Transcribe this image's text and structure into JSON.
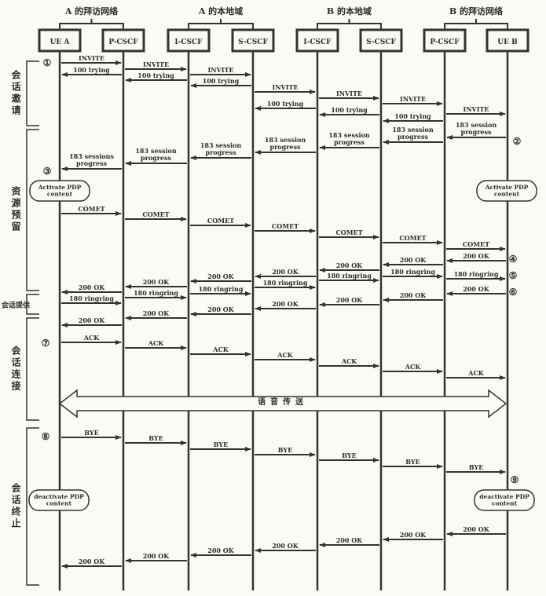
{
  "groups": [
    {
      "label": "A 的拜访网络",
      "from": 0,
      "to": 1
    },
    {
      "label": "A 的本地域",
      "from": 2,
      "to": 3
    },
    {
      "label": "B 的本地域",
      "from": 4,
      "to": 5
    },
    {
      "label": "B 的拜访网络",
      "from": 6,
      "to": 7
    }
  ],
  "entities": [
    "UE A",
    "P-CSCF",
    "I-CSCF",
    "S-CSCF",
    "I-CSCF",
    "S-CSCF",
    "P-CSCF",
    "UE B"
  ],
  "phases": [
    "会话邀请",
    "资源预留",
    "会话提供",
    "会话连接",
    "会话终止"
  ],
  "steps": [
    "①",
    "②",
    "③",
    "④",
    "⑤",
    "⑥",
    "⑦",
    "⑧",
    "⑨"
  ],
  "notes": {
    "activate_a": "Activate PDP\ncontent",
    "activate_b": "Activate PDP\ncontent",
    "deactivate_a": "deactivate PDP\ncontent",
    "deactivate_b": "deactivate PDP\ncontent"
  },
  "media": "语音传送",
  "messages": [
    {
      "from": 0,
      "to": 1,
      "label": "INVITE"
    },
    {
      "from": 1,
      "to": 0,
      "label": "100 trying"
    },
    {
      "from": 1,
      "to": 2,
      "label": "INVITE"
    },
    {
      "from": 2,
      "to": 1,
      "label": "100 trying"
    },
    {
      "from": 2,
      "to": 3,
      "label": "INVITE"
    },
    {
      "from": 3,
      "to": 2,
      "label": "100 trying"
    },
    {
      "from": 3,
      "to": 4,
      "label": "INVITE"
    },
    {
      "from": 4,
      "to": 3,
      "label": "100 trying"
    },
    {
      "from": 4,
      "to": 5,
      "label": "INVITE"
    },
    {
      "from": 5,
      "to": 4,
      "label": "100 trying"
    },
    {
      "from": 5,
      "to": 6,
      "label": "INVITE"
    },
    {
      "from": 6,
      "to": 5,
      "label": "100 trying"
    },
    {
      "from": 6,
      "to": 7,
      "label": "INVITE"
    },
    {
      "from": 7,
      "to": 6,
      "label": "183 session\nprogress"
    },
    {
      "from": 6,
      "to": 5,
      "label": "183 session\nprogress"
    },
    {
      "from": 5,
      "to": 4,
      "label": "183 session\nprogress"
    },
    {
      "from": 4,
      "to": 3,
      "label": "183 session\nprogress"
    },
    {
      "from": 3,
      "to": 2,
      "label": "183 session\nprogress"
    },
    {
      "from": 2,
      "to": 1,
      "label": "183 session\nprogress"
    },
    {
      "from": 1,
      "to": 0,
      "label": "183 sessions\nprogress"
    },
    {
      "from": 0,
      "to": 1,
      "label": "COMET"
    },
    {
      "from": 1,
      "to": 2,
      "label": "COMET"
    },
    {
      "from": 2,
      "to": 3,
      "label": "COMET"
    },
    {
      "from": 3,
      "to": 4,
      "label": "COMET"
    },
    {
      "from": 4,
      "to": 5,
      "label": "COMET"
    },
    {
      "from": 5,
      "to": 6,
      "label": "COMET"
    },
    {
      "from": 6,
      "to": 7,
      "label": "COMET"
    },
    {
      "from": 7,
      "to": 6,
      "label": "200 OK"
    },
    {
      "from": 6,
      "to": 5,
      "label": "200 OK"
    },
    {
      "from": 5,
      "to": 4,
      "label": "200 OK"
    },
    {
      "from": 4,
      "to": 3,
      "label": "200 OK"
    },
    {
      "from": 3,
      "to": 2,
      "label": "200 OK"
    },
    {
      "from": 2,
      "to": 1,
      "label": "200 OK"
    },
    {
      "from": 1,
      "to": 0,
      "label": "200 OK"
    },
    {
      "from": 6,
      "to": 7,
      "label": "180 ringring"
    },
    {
      "from": 5,
      "to": 6,
      "label": "180 ringring"
    },
    {
      "from": 4,
      "to": 5,
      "label": "180 ringring"
    },
    {
      "from": 3,
      "to": 4,
      "label": "180 ringring"
    },
    {
      "from": 2,
      "to": 3,
      "label": "180 ringring"
    },
    {
      "from": 1,
      "to": 2,
      "label": "180 ringring"
    },
    {
      "from": 0,
      "to": 1,
      "label": "180 ringring"
    },
    {
      "from": 7,
      "to": 6,
      "label": "200 OK"
    },
    {
      "from": 6,
      "to": 5,
      "label": "200 OK"
    },
    {
      "from": 5,
      "to": 4,
      "label": "200 OK"
    },
    {
      "from": 4,
      "to": 3,
      "label": "200 OK"
    },
    {
      "from": 3,
      "to": 2,
      "label": "200 OK"
    },
    {
      "from": 2,
      "to": 1,
      "label": "200 OK"
    },
    {
      "from": 1,
      "to": 0,
      "label": "200 OK"
    },
    {
      "from": 0,
      "to": 1,
      "label": "ACK"
    },
    {
      "from": 1,
      "to": 2,
      "label": "ACK"
    },
    {
      "from": 2,
      "to": 3,
      "label": "ACK"
    },
    {
      "from": 3,
      "to": 4,
      "label": "ACK"
    },
    {
      "from": 4,
      "to": 5,
      "label": "ACK"
    },
    {
      "from": 5,
      "to": 6,
      "label": "ACK"
    },
    {
      "from": 6,
      "to": 7,
      "label": "ACK"
    },
    {
      "from": 0,
      "to": 1,
      "label": "BYE"
    },
    {
      "from": 1,
      "to": 2,
      "label": "BYE"
    },
    {
      "from": 2,
      "to": 3,
      "label": "BYE"
    },
    {
      "from": 3,
      "to": 4,
      "label": "BYE"
    },
    {
      "from": 4,
      "to": 5,
      "label": "BYE"
    },
    {
      "from": 5,
      "to": 6,
      "label": "BYE"
    },
    {
      "from": 6,
      "to": 7,
      "label": "BYE"
    },
    {
      "from": 7,
      "to": 6,
      "label": "200 OK"
    },
    {
      "from": 6,
      "to": 5,
      "label": "200 OK"
    },
    {
      "from": 5,
      "to": 4,
      "label": "200 OK"
    },
    {
      "from": 4,
      "to": 3,
      "label": "200 OK"
    },
    {
      "from": 3,
      "to": 2,
      "label": "200 OK"
    },
    {
      "from": 2,
      "to": 1,
      "label": "200 OK"
    },
    {
      "from": 1,
      "to": 0,
      "label": "200 OK"
    }
  ]
}
